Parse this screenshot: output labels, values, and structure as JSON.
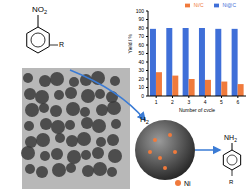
{
  "chart_data": {
    "type": "bar",
    "categories": [
      "1",
      "2",
      "3",
      "4",
      "5",
      "6"
    ],
    "x_label": "Number of cycle",
    "y_label": "Yield / %",
    "series": [
      {
        "name": "Ni@C",
        "color": "#3f6fd8",
        "values": [
          79,
          80,
          80,
          80,
          79,
          79
        ]
      },
      {
        "name": "Ni/C",
        "color": "#f07a3c",
        "values": [
          28,
          24,
          20,
          19,
          17,
          14
        ]
      }
    ],
    "ylim": [
      0,
      100
    ],
    "yticks": [
      0,
      10,
      20,
      30,
      40,
      50,
      60,
      70,
      80,
      90,
      100
    ],
    "legend": "top right",
    "grid": false,
    "annotations": [
      "NO2",
      "R",
      "H2",
      "Ni",
      "NH2",
      "R"
    ]
  }
}
